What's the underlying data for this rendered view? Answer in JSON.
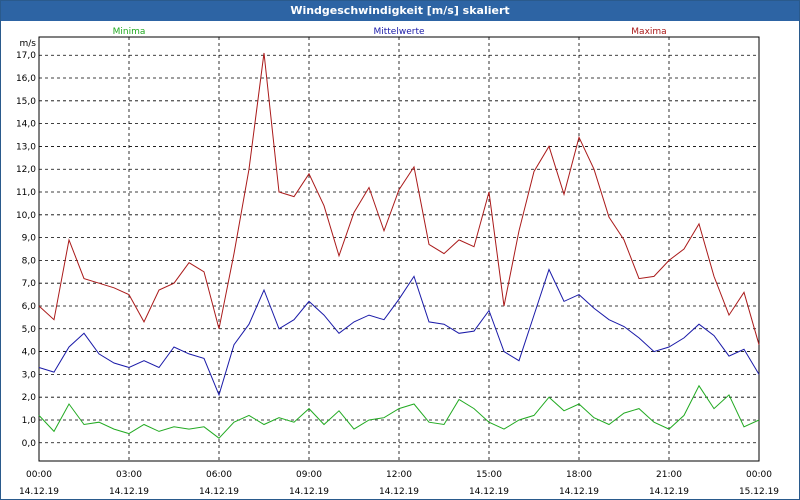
{
  "window": {
    "title": "Windgeschwindigkeit [m/s] skaliert"
  },
  "chart_data": {
    "type": "line",
    "title": "Windgeschwindigkeit [m/s] skaliert",
    "ylabel": "m/s",
    "ylim": [
      -0.8,
      17.8
    ],
    "y_ticks": [
      "0,0",
      "1,0",
      "2,0",
      "3,0",
      "4,0",
      "5,0",
      "6,0",
      "7,0",
      "8,0",
      "9,0",
      "10,0",
      "11,0",
      "12,0",
      "13,0",
      "14,0",
      "15,0",
      "16,0",
      "17,0"
    ],
    "x_ticks": [
      {
        "time": "00:00",
        "date": "14.12.19"
      },
      {
        "time": "03:00",
        "date": "14.12.19"
      },
      {
        "time": "06:00",
        "date": "14.12.19"
      },
      {
        "time": "09:00",
        "date": "14.12.19"
      },
      {
        "time": "12:00",
        "date": "14.12.19"
      },
      {
        "time": "15:00",
        "date": "14.12.19"
      },
      {
        "time": "18:00",
        "date": "14.12.19"
      },
      {
        "time": "21:00",
        "date": "14.12.19"
      },
      {
        "time": "00:00",
        "date": "15.12.19"
      }
    ],
    "grid": true,
    "legend_position": "top",
    "x_unit": "hours",
    "series": [
      {
        "name": "Minima",
        "color": "#22aa22",
        "x": [
          0,
          0.5,
          1,
          1.5,
          2,
          2.5,
          3,
          3.5,
          4,
          4.5,
          5,
          5.5,
          6,
          6.5,
          7,
          7.5,
          8,
          8.5,
          9,
          9.5,
          10,
          10.5,
          11,
          11.5,
          12,
          12.5,
          13,
          13.5,
          14,
          14.5,
          15,
          15.5,
          16,
          16.5,
          17,
          17.5,
          18,
          18.5,
          19,
          19.5,
          20,
          20.5,
          21,
          21.5,
          22,
          22.5,
          23,
          23.5,
          24
        ],
        "values": [
          1.2,
          0.5,
          1.7,
          0.8,
          0.9,
          0.6,
          0.4,
          0.8,
          0.5,
          0.7,
          0.6,
          0.7,
          0.2,
          0.9,
          1.2,
          0.8,
          1.1,
          0.9,
          1.5,
          0.8,
          1.4,
          0.6,
          1.0,
          1.1,
          1.5,
          1.7,
          0.9,
          0.8,
          1.9,
          1.5,
          0.9,
          0.6,
          1.0,
          1.2,
          2.0,
          1.4,
          1.7,
          1.1,
          0.8,
          1.3,
          1.5,
          0.9,
          0.6,
          1.2,
          2.5,
          1.5,
          2.1,
          0.7,
          1.0
        ]
      },
      {
        "name": "Mittelwerte",
        "color": "#1a1aa8",
        "x": [
          0,
          0.5,
          1,
          1.5,
          2,
          2.5,
          3,
          3.5,
          4,
          4.5,
          5,
          5.5,
          6,
          6.5,
          7,
          7.5,
          8,
          8.5,
          9,
          9.5,
          10,
          10.5,
          11,
          11.5,
          12,
          12.5,
          13,
          13.5,
          14,
          14.5,
          15,
          15.5,
          16,
          16.5,
          17,
          17.5,
          18,
          18.5,
          19,
          19.5,
          20,
          20.5,
          21,
          21.5,
          22,
          22.5,
          23,
          23.5,
          24
        ],
        "values": [
          3.3,
          3.1,
          4.2,
          4.8,
          3.9,
          3.5,
          3.3,
          3.6,
          3.3,
          4.2,
          3.9,
          3.7,
          2.1,
          4.3,
          5.2,
          6.7,
          5.0,
          5.4,
          6.2,
          5.6,
          4.8,
          5.3,
          5.6,
          5.4,
          6.3,
          7.3,
          5.3,
          5.2,
          4.8,
          4.9,
          5.8,
          4.0,
          3.6,
          5.6,
          7.6,
          6.2,
          6.5,
          5.9,
          5.4,
          5.1,
          4.6,
          4.0,
          4.2,
          4.6,
          5.2,
          4.7,
          3.8,
          4.1,
          3.0
        ]
      },
      {
        "name": "Maxima",
        "color": "#aa1a1a",
        "x": [
          0,
          0.5,
          1,
          1.5,
          2,
          2.5,
          3,
          3.5,
          4,
          4.5,
          5,
          5.5,
          6,
          6.5,
          7,
          7.5,
          8,
          8.5,
          9,
          9.5,
          10,
          10.5,
          11,
          11.5,
          12,
          12.5,
          13,
          13.5,
          14,
          14.5,
          15,
          15.5,
          16,
          16.5,
          17,
          17.5,
          18,
          18.5,
          19,
          19.5,
          20,
          20.5,
          21,
          21.5,
          22,
          22.5,
          23,
          23.5,
          24
        ],
        "values": [
          6.0,
          5.4,
          8.9,
          7.2,
          7.0,
          6.8,
          6.5,
          5.3,
          6.7,
          7.0,
          7.9,
          7.5,
          5.0,
          8.3,
          12.0,
          17.1,
          11.0,
          10.8,
          11.8,
          10.4,
          8.2,
          10.1,
          11.2,
          9.3,
          11.1,
          12.1,
          8.7,
          8.3,
          8.9,
          8.6,
          11.0,
          6.0,
          9.3,
          11.9,
          13.0,
          10.9,
          13.4,
          12.0,
          9.9,
          8.9,
          7.2,
          7.3,
          8.0,
          8.5,
          9.6,
          7.3,
          5.6,
          6.6,
          4.3
        ]
      }
    ]
  }
}
